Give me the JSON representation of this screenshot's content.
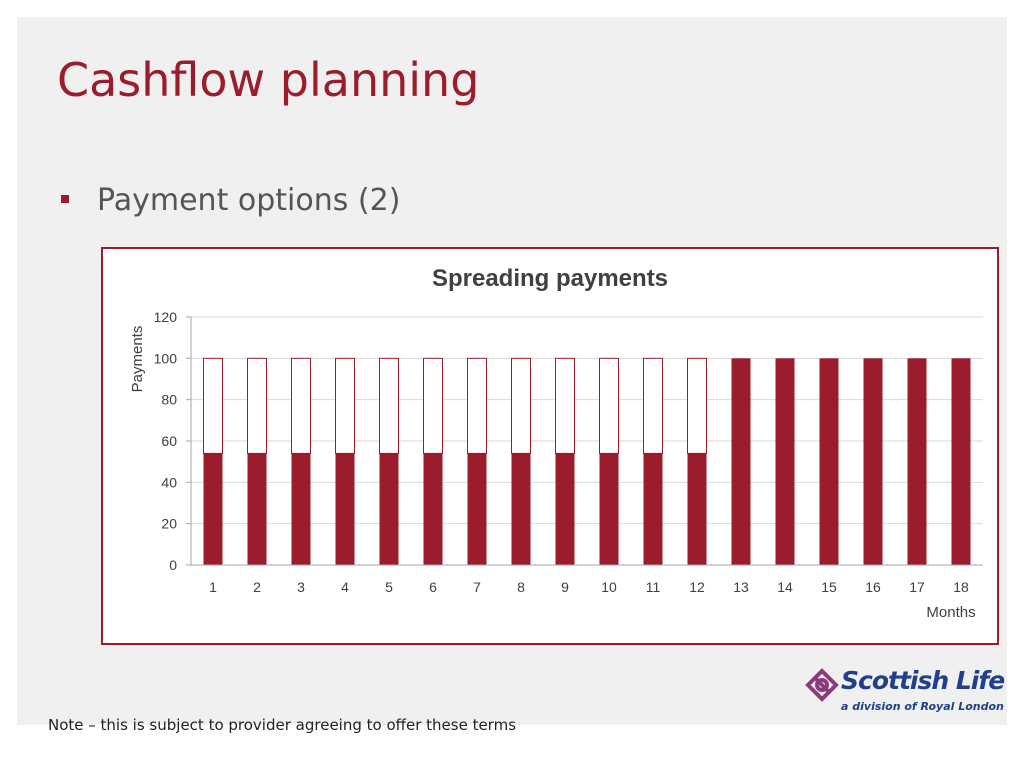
{
  "slide": {
    "title": "Cashflow planning",
    "bullet": "Payment options (2)",
    "note": "Note – this is subject to provider agreeing to offer these terms"
  },
  "logo": {
    "name": "Scottish Life",
    "tagline": "a division of Royal London",
    "icon": "scottish-life-knot-icon",
    "colors": {
      "text": "#213f8c",
      "icon": "#8a3b7e"
    }
  },
  "colors": {
    "accent": "#9b1c2c",
    "slide_background": "#f0f0f0",
    "bullet_text": "#555555",
    "chart_text": "#404040",
    "gridline": "#d9d9d9"
  },
  "chart_data": {
    "type": "bar",
    "stacked": true,
    "title": "Spreading payments",
    "xlabel": "Months",
    "ylabel": "Payments",
    "ylim": [
      0,
      120
    ],
    "yticks": [
      0,
      20,
      40,
      60,
      80,
      100,
      120
    ],
    "grid": true,
    "legend": "none",
    "categories": [
      "1",
      "2",
      "3",
      "4",
      "5",
      "6",
      "7",
      "8",
      "9",
      "10",
      "11",
      "12",
      "13",
      "14",
      "15",
      "16",
      "17",
      "18"
    ],
    "series": [
      {
        "color": "#9b1c2c",
        "values": [
          54,
          54,
          54,
          54,
          54,
          54,
          54,
          54,
          54,
          54,
          54,
          54,
          100,
          100,
          100,
          100,
          100,
          100
        ]
      },
      {
        "color": "#ffffff",
        "border": "#9b1c2c",
        "values": [
          46,
          46,
          46,
          46,
          46,
          46,
          46,
          46,
          46,
          46,
          46,
          46,
          0,
          0,
          0,
          0,
          0,
          0
        ]
      }
    ]
  }
}
